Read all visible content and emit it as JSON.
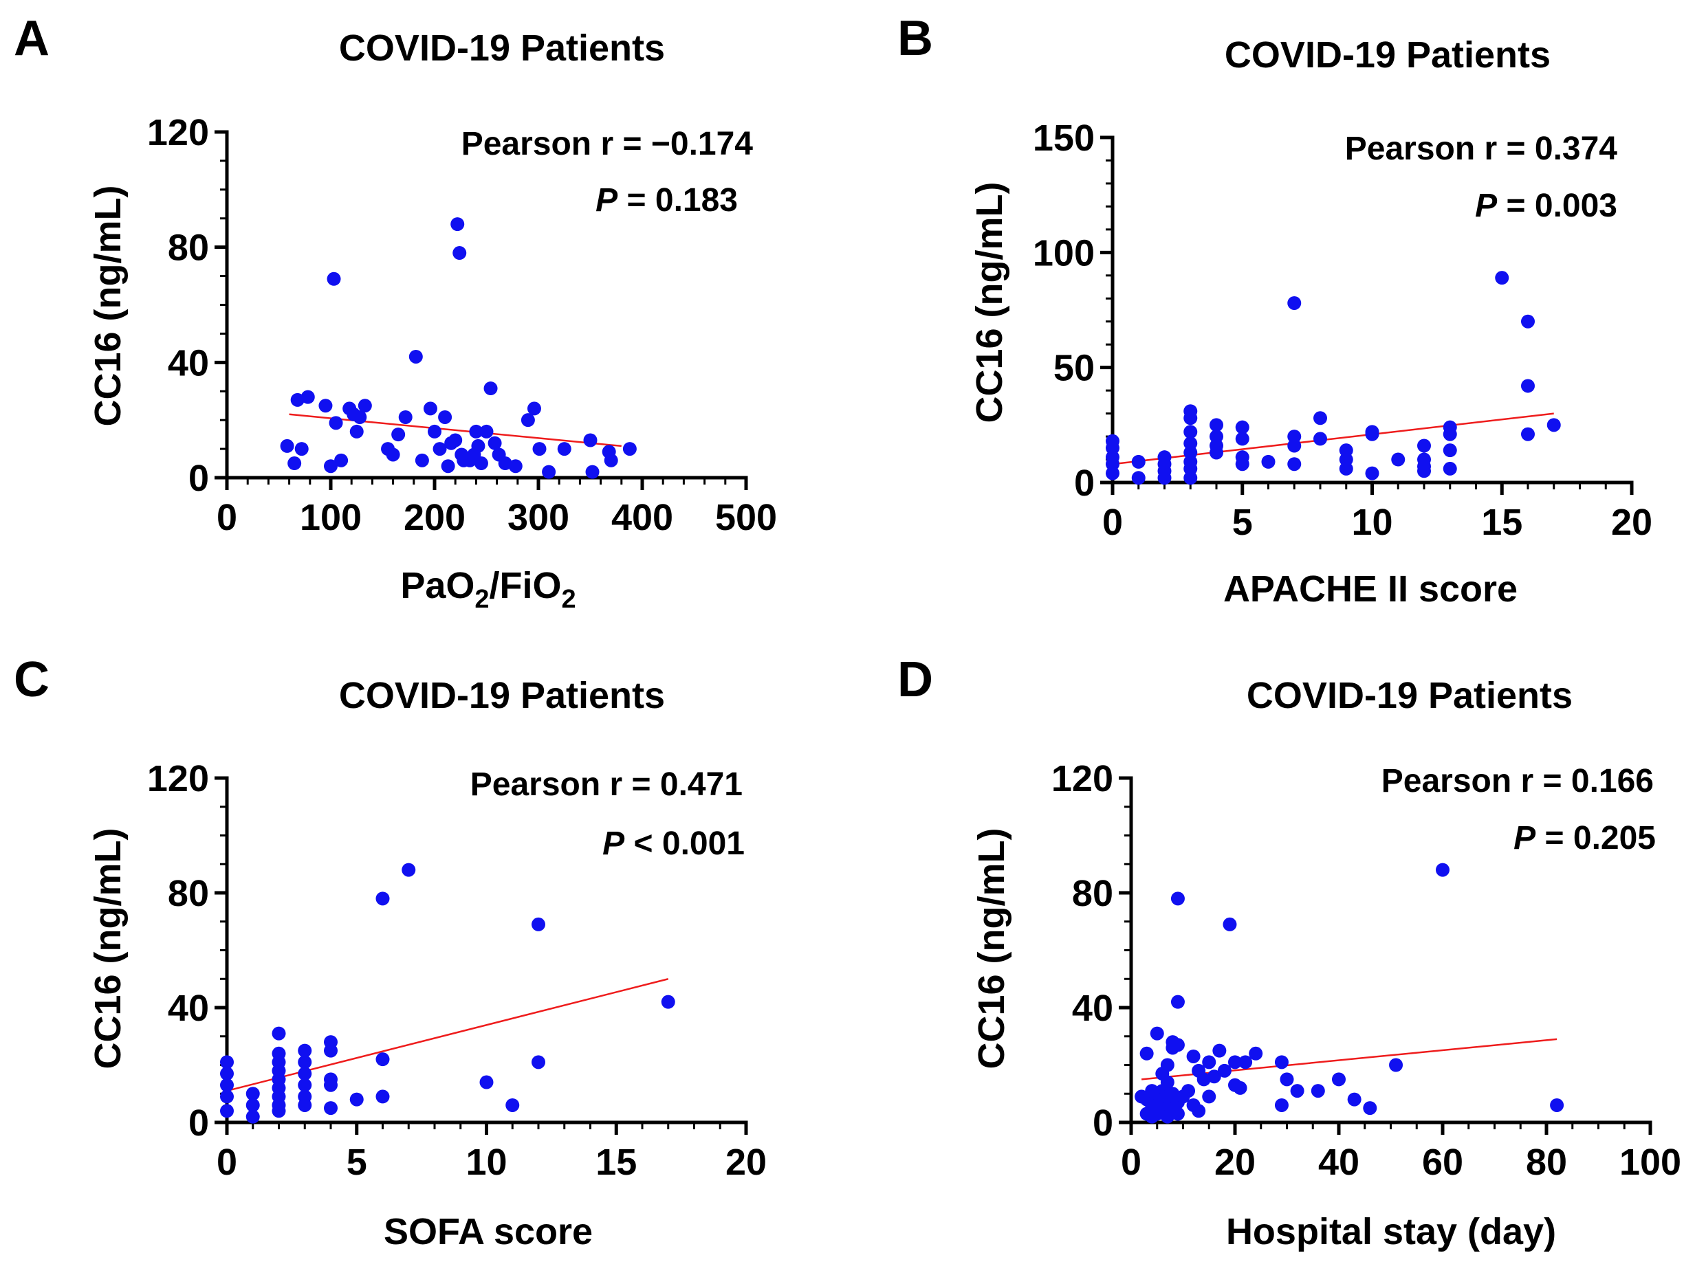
{
  "panels": [
    {
      "letter": "A",
      "title": "COVID-19 Patients",
      "stat_line1": "Pearson r = −0.174",
      "stat_p_letter": "P",
      "stat_p_rest": " = 0.183",
      "ylabel": "CC16 (ng/mL)",
      "xlabel_parts": [
        "PaO",
        "2",
        "/FiO",
        "2"
      ]
    },
    {
      "letter": "B",
      "title": "COVID-19 Patients",
      "stat_line1": "Pearson r = 0.374",
      "stat_p_letter": "P",
      "stat_p_rest": " = 0.003",
      "ylabel": "CC16 (ng/mL)",
      "xlabel": "APACHE II score"
    },
    {
      "letter": "C",
      "title": "COVID-19 Patients",
      "stat_line1": "Pearson r = 0.471",
      "stat_p_letter": "P",
      "stat_p_rest": " < 0.001",
      "ylabel": "CC16 (ng/mL)",
      "xlabel": "SOFA score"
    },
    {
      "letter": "D",
      "title": "COVID-19 Patients",
      "stat_line1": "Pearson r = 0.166",
      "stat_p_letter": "P",
      "stat_p_rest": " = 0.205",
      "ylabel": "CC16 (ng/mL)",
      "xlabel": "Hospital stay (day)"
    }
  ],
  "chart_data": [
    {
      "type": "scatter",
      "title": "COVID-19 Patients",
      "xlabel": "PaO2/FiO2",
      "ylabel": "CC16 (ng/mL)",
      "xlim": [
        0,
        500
      ],
      "ylim": [
        0,
        120
      ],
      "xticks": [
        0,
        100,
        200,
        300,
        400,
        500
      ],
      "yticks": [
        0,
        40,
        80,
        120
      ],
      "x_minor_step": 20,
      "y_minor_step": 10,
      "color": "#1010f0",
      "fit_color": "#ee1c1c",
      "fit": {
        "x": [
          60,
          380
        ],
        "y": [
          22,
          11
        ]
      },
      "points": [
        [
          58,
          11
        ],
        [
          65,
          5
        ],
        [
          68,
          27
        ],
        [
          72,
          10
        ],
        [
          78,
          28
        ],
        [
          95,
          25
        ],
        [
          100,
          4
        ],
        [
          103,
          69
        ],
        [
          105,
          19
        ],
        [
          110,
          6
        ],
        [
          118,
          24
        ],
        [
          122,
          22
        ],
        [
          125,
          16
        ],
        [
          128,
          21
        ],
        [
          133,
          25
        ],
        [
          155,
          10
        ],
        [
          160,
          8
        ],
        [
          165,
          15
        ],
        [
          172,
          21
        ],
        [
          182,
          42
        ],
        [
          188,
          6
        ],
        [
          196,
          24
        ],
        [
          200,
          16
        ],
        [
          205,
          10
        ],
        [
          210,
          21
        ],
        [
          213,
          4
        ],
        [
          216,
          12
        ],
        [
          220,
          13
        ],
        [
          222,
          88
        ],
        [
          224,
          78
        ],
        [
          226,
          8
        ],
        [
          228,
          6
        ],
        [
          234,
          6
        ],
        [
          238,
          8
        ],
        [
          240,
          16
        ],
        [
          242,
          11
        ],
        [
          245,
          5
        ],
        [
          250,
          16
        ],
        [
          254,
          31
        ],
        [
          258,
          12
        ],
        [
          262,
          8
        ],
        [
          268,
          5
        ],
        [
          278,
          4
        ],
        [
          290,
          20
        ],
        [
          296,
          24
        ],
        [
          301,
          10
        ],
        [
          310,
          2
        ],
        [
          325,
          10
        ],
        [
          350,
          13
        ],
        [
          352,
          2
        ],
        [
          368,
          9
        ],
        [
          370,
          6
        ],
        [
          388,
          10
        ]
      ]
    },
    {
      "type": "scatter",
      "title": "COVID-19 Patients",
      "xlabel": "APACHE II score",
      "ylabel": "CC16 (ng/mL)",
      "xlim": [
        0,
        20
      ],
      "ylim": [
        0,
        150
      ],
      "xticks": [
        0,
        5,
        10,
        15,
        20
      ],
      "yticks": [
        0,
        50,
        100,
        150
      ],
      "x_minor_step": 1,
      "y_minor_step": 10,
      "color": "#1010f0",
      "fit_color": "#ee1c1c",
      "fit": {
        "x": [
          0,
          17
        ],
        "y": [
          8,
          30
        ]
      },
      "points": [
        [
          0,
          18
        ],
        [
          0,
          15
        ],
        [
          0,
          11
        ],
        [
          0,
          8
        ],
        [
          0,
          4
        ],
        [
          1,
          9
        ],
        [
          1,
          2
        ],
        [
          2,
          11
        ],
        [
          2,
          8
        ],
        [
          2,
          5
        ],
        [
          2,
          2
        ],
        [
          3,
          31
        ],
        [
          3,
          28
        ],
        [
          3,
          22
        ],
        [
          3,
          17
        ],
        [
          3,
          13
        ],
        [
          3,
          9
        ],
        [
          3,
          6
        ],
        [
          3,
          2
        ],
        [
          4,
          25
        ],
        [
          4,
          20
        ],
        [
          4,
          16
        ],
        [
          4,
          13
        ],
        [
          5,
          24
        ],
        [
          5,
          19
        ],
        [
          5,
          11
        ],
        [
          5,
          8
        ],
        [
          6,
          9
        ],
        [
          7,
          78
        ],
        [
          7,
          20
        ],
        [
          7,
          16
        ],
        [
          7,
          8
        ],
        [
          8,
          28
        ],
        [
          8,
          19
        ],
        [
          9,
          14
        ],
        [
          9,
          10
        ],
        [
          9,
          6
        ],
        [
          10,
          22
        ],
        [
          10,
          21
        ],
        [
          10,
          4
        ],
        [
          11,
          10
        ],
        [
          12,
          16
        ],
        [
          12,
          10
        ],
        [
          12,
          7
        ],
        [
          12,
          5
        ],
        [
          13,
          24
        ],
        [
          13,
          21
        ],
        [
          13,
          14
        ],
        [
          13,
          6
        ],
        [
          15,
          89
        ],
        [
          16,
          70
        ],
        [
          16,
          42
        ],
        [
          16,
          21
        ],
        [
          17,
          25
        ]
      ]
    },
    {
      "type": "scatter",
      "title": "COVID-19 Patients",
      "xlabel": "SOFA score",
      "ylabel": "CC16 (ng/mL)",
      "xlim": [
        0,
        20
      ],
      "ylim": [
        0,
        120
      ],
      "xticks": [
        0,
        5,
        10,
        15,
        20
      ],
      "yticks": [
        0,
        40,
        80,
        120
      ],
      "x_minor_step": 1,
      "y_minor_step": 10,
      "color": "#1010f0",
      "fit_color": "#ee1c1c",
      "fit": {
        "x": [
          0,
          17
        ],
        "y": [
          11,
          50
        ]
      },
      "points": [
        [
          0,
          21
        ],
        [
          0,
          17
        ],
        [
          0,
          13
        ],
        [
          0,
          9
        ],
        [
          0,
          4
        ],
        [
          1,
          10
        ],
        [
          1,
          6
        ],
        [
          1,
          2
        ],
        [
          2,
          31
        ],
        [
          2,
          24
        ],
        [
          2,
          21
        ],
        [
          2,
          18
        ],
        [
          2,
          15
        ],
        [
          2,
          12
        ],
        [
          2,
          9
        ],
        [
          2,
          6
        ],
        [
          2,
          4
        ],
        [
          3,
          25
        ],
        [
          3,
          21
        ],
        [
          3,
          17
        ],
        [
          3,
          13
        ],
        [
          3,
          9
        ],
        [
          3,
          6
        ],
        [
          4,
          28
        ],
        [
          4,
          25
        ],
        [
          4,
          15
        ],
        [
          4,
          13
        ],
        [
          4,
          5
        ],
        [
          5,
          8
        ],
        [
          6,
          78
        ],
        [
          6,
          22
        ],
        [
          6,
          9
        ],
        [
          7,
          88
        ],
        [
          10,
          14
        ],
        [
          11,
          6
        ],
        [
          12,
          69
        ],
        [
          12,
          21
        ],
        [
          17,
          42
        ]
      ]
    },
    {
      "type": "scatter",
      "title": "COVID-19 Patients",
      "xlabel": "Hospital stay (day)",
      "ylabel": "CC16 (ng/mL)",
      "xlim": [
        0,
        100
      ],
      "ylim": [
        0,
        120
      ],
      "xticks": [
        0,
        20,
        40,
        60,
        80,
        100
      ],
      "yticks": [
        0,
        40,
        80,
        120
      ],
      "x_minor_step": 5,
      "y_minor_step": 10,
      "color": "#1010f0",
      "fit_color": "#ee1c1c",
      "fit": {
        "x": [
          2,
          82
        ],
        "y": [
          15,
          29
        ]
      },
      "points": [
        [
          2,
          9
        ],
        [
          3,
          3
        ],
        [
          3,
          24
        ],
        [
          3,
          8
        ],
        [
          4,
          5
        ],
        [
          4,
          2
        ],
        [
          4,
          11
        ],
        [
          5,
          31
        ],
        [
          5,
          9
        ],
        [
          5,
          6
        ],
        [
          5,
          3
        ],
        [
          6,
          17
        ],
        [
          6,
          11
        ],
        [
          6,
          8
        ],
        [
          6,
          4
        ],
        [
          7,
          20
        ],
        [
          7,
          14
        ],
        [
          7,
          9
        ],
        [
          7,
          5
        ],
        [
          7,
          2
        ],
        [
          8,
          28
        ],
        [
          8,
          26
        ],
        [
          8,
          10
        ],
        [
          9,
          27
        ],
        [
          9,
          78
        ],
        [
          9,
          42
        ],
        [
          9,
          7
        ],
        [
          9,
          3
        ],
        [
          10,
          9
        ],
        [
          11,
          11
        ],
        [
          12,
          23
        ],
        [
          12,
          6
        ],
        [
          13,
          18
        ],
        [
          13,
          4
        ],
        [
          14,
          15
        ],
        [
          15,
          21
        ],
        [
          15,
          9
        ],
        [
          16,
          16
        ],
        [
          17,
          25
        ],
        [
          18,
          18
        ],
        [
          19,
          69
        ],
        [
          20,
          21
        ],
        [
          20,
          13
        ],
        [
          21,
          12
        ],
        [
          22,
          21
        ],
        [
          24,
          24
        ],
        [
          29,
          21
        ],
        [
          29,
          6
        ],
        [
          30,
          15
        ],
        [
          32,
          11
        ],
        [
          36,
          11
        ],
        [
          40,
          15
        ],
        [
          43,
          8
        ],
        [
          46,
          5
        ],
        [
          51,
          20
        ],
        [
          60,
          88
        ],
        [
          82,
          6
        ]
      ]
    }
  ]
}
